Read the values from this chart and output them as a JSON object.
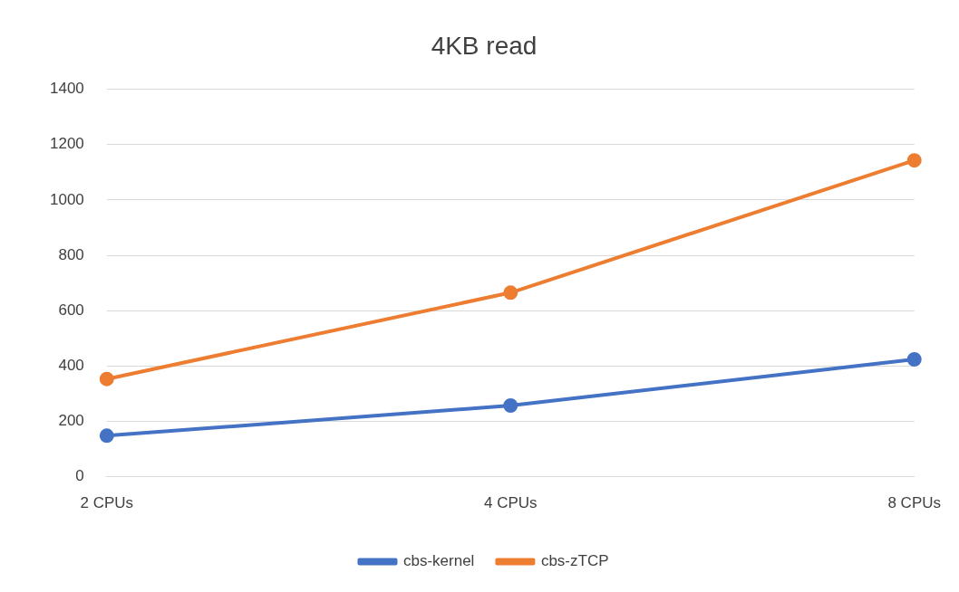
{
  "chart_data": {
    "type": "line",
    "title": "4KB read",
    "categories": [
      "2 CPUs",
      "4 CPUs",
      "8 CPUs"
    ],
    "series": [
      {
        "name": "cbs-kernel",
        "color": "#4472c4",
        "values": [
          148,
          257,
          424
        ]
      },
      {
        "name": "cbs-zTCP",
        "color": "#ed7d31",
        "values": [
          353,
          665,
          1143
        ]
      }
    ],
    "ylim": [
      0,
      1400
    ],
    "yticks": [
      0,
      200,
      400,
      600,
      800,
      1000,
      1200,
      1400
    ],
    "grid": "y",
    "legend": "bottom",
    "marker": "circle",
    "line_style": "solid"
  }
}
